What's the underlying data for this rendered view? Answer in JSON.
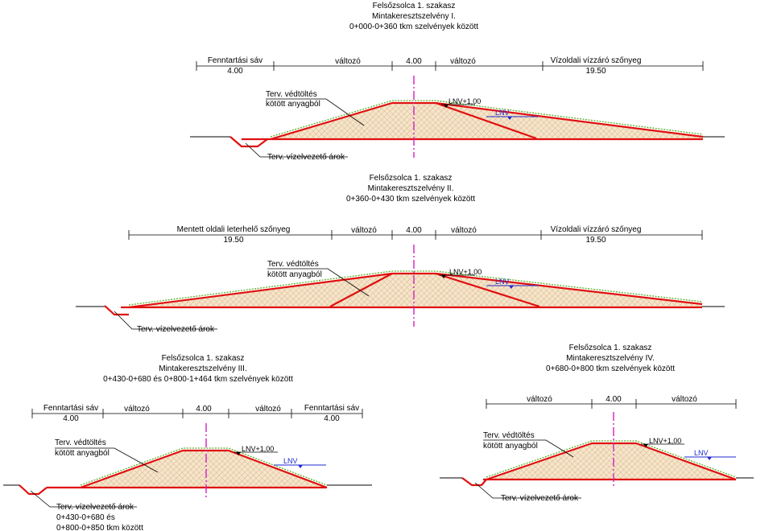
{
  "sections": [
    {
      "id": "s1",
      "title": [
        "Felsőzsolca 1. szakasz",
        "Mintakeresztszelvény I.",
        "0+000-0+360 tkm szelvények között"
      ],
      "dims": [
        [
          "Fenntartási sáv",
          "4.00"
        ],
        "változó",
        "4.00",
        "változó",
        [
          "Vízoldali vízzáró szőnyeg",
          "19.50"
        ]
      ],
      "fill_label": [
        "Terv. védtöltés",
        "kötött anyagból"
      ],
      "ditch_label": [
        "Terv. vízelvezető árok"
      ],
      "lnv1": "LNV+1,00",
      "lnv": "LNV"
    },
    {
      "id": "s2",
      "title": [
        "Felsőzsolca 1. szakasz",
        "Mintakeresztszelvény II.",
        "0+360-0+430 tkm szelvények között"
      ],
      "dims": [
        [
          "Mentett oldali leterhelő szőnyeg",
          "19.50"
        ],
        "változó",
        "4.00",
        "változó",
        [
          "Vízoldali vízzáró szőnyeg",
          "19.50"
        ]
      ],
      "fill_label": [
        "Terv. védtöltés",
        "kötött anyagból"
      ],
      "ditch_label": [
        "Terv. vízelvezető árok"
      ],
      "lnv1": "LNV+1,00",
      "lnv": "LNV"
    },
    {
      "id": "s3",
      "title": [
        "Felsőzsolca 1. szakasz",
        "Mintakeresztszelvény III.",
        "0+430-0+680 és 0+800-1+464 tkm szelvények között"
      ],
      "dims": [
        [
          "Fenntartási sáv",
          "4.00"
        ],
        "változó",
        "4.00",
        "változó",
        [
          "Fenntartási sáv",
          "4.00"
        ]
      ],
      "fill_label": [
        "Terv. védtöltés",
        "kötött anyagból"
      ],
      "ditch_label": [
        "Terv. vízelvezető árok",
        "0+430-0+680 és",
        "0+800-0+850 tkm között"
      ],
      "lnv1": "LNV+1,00",
      "lnv": "LNV"
    },
    {
      "id": "s4",
      "title": [
        "Felsőzsolca 1. szakasz",
        "Mintakeresztszelvény IV.",
        "0+680-0+800 tkm szelvények között"
      ],
      "dims": [
        "változó",
        "4.00",
        "változó"
      ],
      "fill_label": [
        "Terv. védtöltés",
        "kötött anyagból"
      ],
      "ditch_label": [
        "Terv. vízelvezető árok"
      ],
      "lnv1": "LNV+1,00",
      "lnv": "LNV"
    }
  ]
}
